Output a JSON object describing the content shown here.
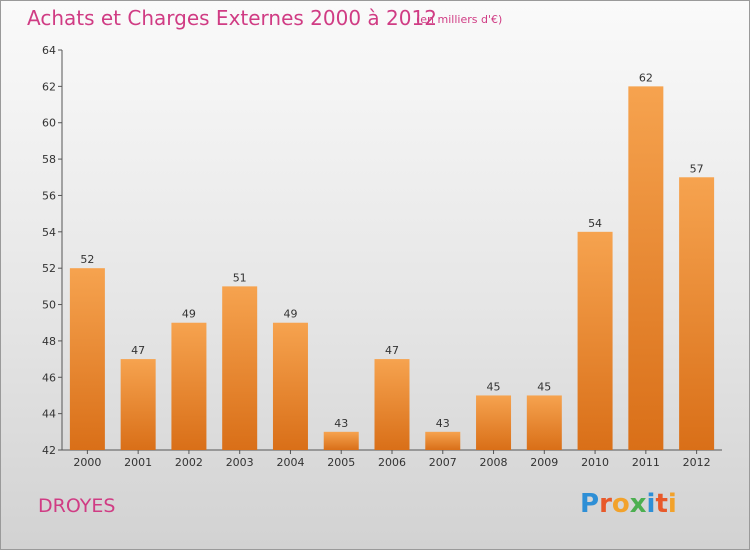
{
  "title": "Achats et Charges Externes 2000 à 2012",
  "subtitle": "(en milliers d'€)",
  "commune": "DROYES",
  "logo": {
    "letters": [
      "P",
      "r",
      "o",
      "x",
      "i",
      "t",
      "i"
    ],
    "colors": [
      "#2e8fd6",
      "#e8592a",
      "#f2a22b",
      "#4caf50",
      "#2e8fd6",
      "#e8592a",
      "#f2a22b"
    ]
  },
  "colors": {
    "bar_top": "#f6a34f",
    "bar_bottom": "#d96f18",
    "title": "#d03c84"
  },
  "chart_data": {
    "type": "bar",
    "title": "Achats et Charges Externes 2000 à 2012",
    "categories": [
      "2000",
      "2001",
      "2002",
      "2003",
      "2004",
      "2005",
      "2006",
      "2007",
      "2008",
      "2009",
      "2010",
      "2011",
      "2012"
    ],
    "values": [
      52,
      47,
      49,
      51,
      49,
      43,
      47,
      43,
      45,
      45,
      54,
      62,
      57
    ],
    "ylim": [
      42,
      64
    ],
    "yticks": [
      42,
      44,
      46,
      48,
      50,
      52,
      54,
      56,
      58,
      60,
      62,
      64
    ],
    "grid": false,
    "legend": "none"
  }
}
